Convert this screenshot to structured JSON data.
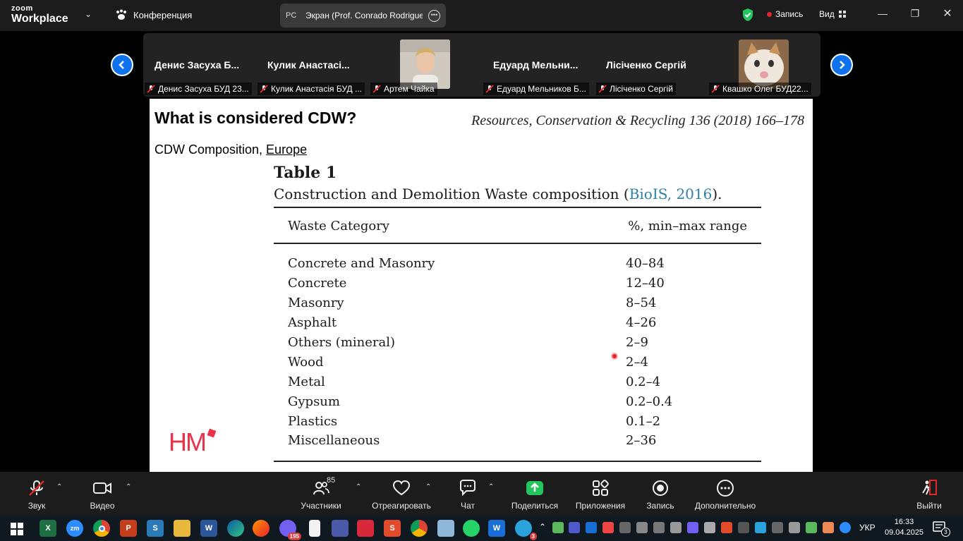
{
  "app": {
    "logo_line1": "zoom",
    "logo_line2": "Workplace",
    "conference_label": "Конференция",
    "share_badge": "PC",
    "share_title": "Экран (Prof. Conrado Rodrigues",
    "record_label": "Запись",
    "view_label": "Вид"
  },
  "gallery": {
    "tiles": [
      {
        "name": "Денис Засуха Б...",
        "label": "Денис Засуха БУД 23..."
      },
      {
        "name": "Кулик Анастасі...",
        "label": "Кулик Анастасія БУД ..."
      },
      {
        "name": "",
        "label": "Артем Чайка"
      },
      {
        "name": "Едуард Мельни...",
        "label": "Едуард Мельников Б..."
      },
      {
        "name": "Лісіченко Сергій",
        "label": "Лісіченко Сергій"
      },
      {
        "name": "",
        "label": "Квашко Олег БУД22..."
      }
    ]
  },
  "slide": {
    "title": "What is considered CDW?",
    "journal": "Resources, Conservation & Recycling 136 (2018) 166–178",
    "subtitle_prefix": "CDW Composition, ",
    "subtitle_link": "Europe",
    "table_number": "Table 1",
    "table_caption_prefix": "Construction and Demolition Waste composition (",
    "table_caption_cite": "BioIS, 2016",
    "table_caption_suffix": ").",
    "col_category": "Waste Category",
    "col_range": "%, min–max range",
    "rows": [
      {
        "category": "Concrete and Masonry",
        "range": "40–84"
      },
      {
        "category": "Concrete",
        "range": "12–40"
      },
      {
        "category": "Masonry",
        "range": "8–54"
      },
      {
        "category": "Asphalt",
        "range": "4–26"
      },
      {
        "category": "Others (mineral)",
        "range": "2–9"
      },
      {
        "category": "Wood",
        "range": "2–4"
      },
      {
        "category": "Metal",
        "range": "0.2–4"
      },
      {
        "category": "Gypsum",
        "range": "0.2–0.4"
      },
      {
        "category": "Plastics",
        "range": "0.1–2"
      },
      {
        "category": "Miscellaneous",
        "range": "2–36"
      }
    ],
    "logo_text": "HM"
  },
  "toolbar": {
    "audio": "Звук",
    "video": "Видео",
    "participants": "Участники",
    "participants_count": "85",
    "react": "Отреагировать",
    "chat": "Чат",
    "share": "Поделиться",
    "apps": "Приложения",
    "record": "Запись",
    "more": "Дополнительно",
    "leave": "Выйти"
  },
  "taskbar": {
    "viber_badge": "195",
    "telegram_badge": "3",
    "language": "УКР",
    "time": "16:33",
    "date": "09.04.2025",
    "notifications": "3"
  },
  "colors": {
    "zoom_blue": "#0e72ed",
    "share_green": "#22c55e",
    "citation_blue": "#2f7fa6",
    "record_red": "#e02828",
    "hm_red": "#e8334a"
  }
}
